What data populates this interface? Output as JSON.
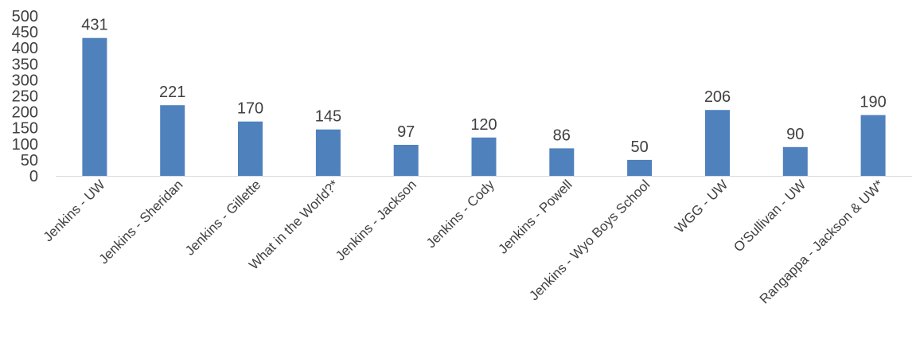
{
  "chart_data": {
    "type": "bar",
    "title": "",
    "xlabel": "",
    "ylabel": "",
    "ylim": [
      0,
      500
    ],
    "yticks": [
      0,
      50,
      100,
      150,
      200,
      250,
      300,
      350,
      400,
      450,
      500
    ],
    "ytick_labels": [
      "0",
      "50",
      "100",
      "150",
      "200",
      "250",
      "300",
      "350",
      "400",
      "450",
      "500"
    ],
    "grid": false,
    "legend": "none",
    "bar_color": "#4f81bd",
    "categories": [
      "Jenkins - UW",
      "Jenkins - Sheridan",
      "Jenkins - Gillette",
      "What in the World?*",
      "Jenkins - Jackson",
      "Jenkins - Cody",
      "Jenkins - Powell",
      "Jenkins - Wyo Boys School",
      "WGG - UW",
      "O'Sullivan - UW",
      "Rangappa - Jackson & UW*"
    ],
    "values": [
      431,
      221,
      170,
      145,
      97,
      120,
      86,
      50,
      206,
      90,
      190
    ],
    "data_labels": [
      "431",
      "221",
      "170",
      "145",
      "97",
      "120",
      "86",
      "50",
      "206",
      "90",
      "190"
    ]
  }
}
